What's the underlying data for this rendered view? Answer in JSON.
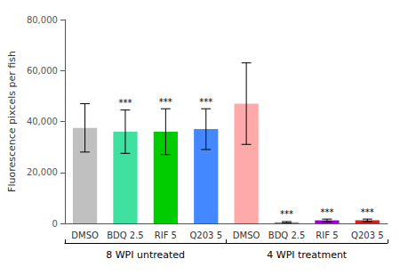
{
  "chart_data": {
    "type": "bar",
    "ylabel": "Fluorescence pixcels per fish",
    "ylim": [
      0,
      80000
    ],
    "yticks": [
      0,
      {
        "value": 20000,
        "label": "20,000"
      },
      {
        "value": 40000,
        "label": "40,000"
      },
      {
        "value": 60000,
        "label": "60,000"
      },
      {
        "value": 80000,
        "label": "80,000"
      }
    ],
    "grid": false,
    "groups": [
      {
        "label": "8 WPI untreated",
        "categories": [
          "DMSO",
          "BDQ 2.5",
          "RIF 5",
          "Q203 5"
        ],
        "values": [
          37500,
          36000,
          36000,
          37000
        ],
        "errors": [
          9500,
          8500,
          9000,
          8000
        ],
        "colors": [
          "#c0c0c0",
          "#40e0a0",
          "#00cc00",
          "#4488ff"
        ],
        "significance": [
          null,
          "***",
          "***",
          "***"
        ]
      },
      {
        "label": "4 WPI treatment",
        "categories": [
          "DMSO",
          "BDQ 2.5",
          "RIF 5",
          "Q203 5"
        ],
        "values": [
          47000,
          400,
          1200,
          1200
        ],
        "errors": [
          16000,
          300,
          500,
          500
        ],
        "colors": [
          "#ffaaaa",
          "#888888",
          "#9900cc",
          "#cc2222"
        ],
        "significance": [
          null,
          "***",
          "***",
          "***"
        ]
      }
    ]
  }
}
